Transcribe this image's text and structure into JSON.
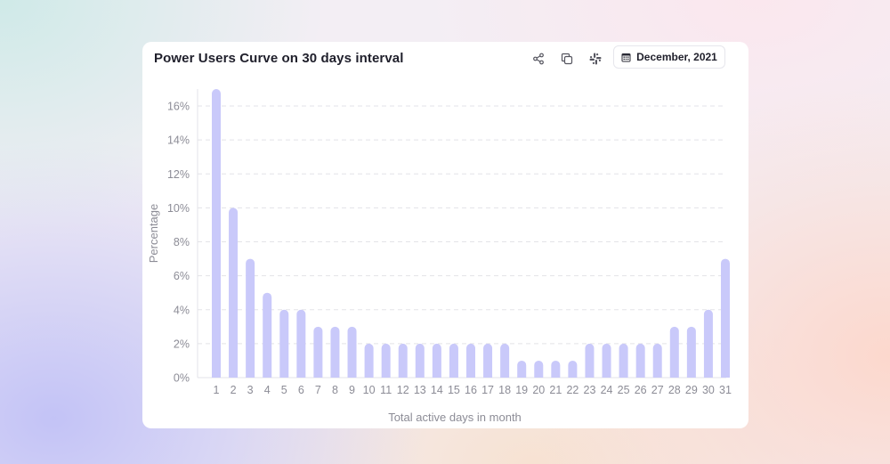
{
  "card": {
    "title": "Power Users Curve on 30 days interval",
    "date_label": "December, 2021"
  },
  "icons": {
    "share": "share-icon",
    "copy": "copy-icon",
    "slack": "slack-icon",
    "calendar": "calendar-icon"
  },
  "colors": {
    "bar": "#c9c9fa",
    "grid": "#e3e3e8",
    "axis_text": "#8c8c96",
    "title": "#1f1f2b"
  },
  "chart_data": {
    "type": "bar",
    "title": "Power Users Curve on 30 days interval",
    "xlabel": "Total active days in month",
    "ylabel": "Percentage",
    "categories": [
      "1",
      "2",
      "3",
      "4",
      "5",
      "6",
      "7",
      "8",
      "9",
      "10",
      "11",
      "12",
      "13",
      "14",
      "15",
      "16",
      "17",
      "18",
      "19",
      "20",
      "21",
      "22",
      "23",
      "24",
      "25",
      "26",
      "27",
      "28",
      "29",
      "30",
      "31"
    ],
    "values": [
      17,
      10,
      7,
      5,
      4,
      4,
      3,
      3,
      3,
      2,
      2,
      2,
      2,
      2,
      2,
      2,
      2,
      2,
      1,
      1,
      1,
      1,
      2,
      2,
      2,
      2,
      2,
      3,
      3,
      4,
      7
    ],
    "ylim": [
      0,
      17
    ],
    "yticks": [
      0,
      2,
      4,
      6,
      8,
      10,
      12,
      14,
      16
    ],
    "ytick_labels": [
      "0%",
      "2%",
      "4%",
      "6%",
      "8%",
      "10%",
      "12%",
      "14%",
      "16%"
    ],
    "grid": true,
    "legend": "none"
  }
}
